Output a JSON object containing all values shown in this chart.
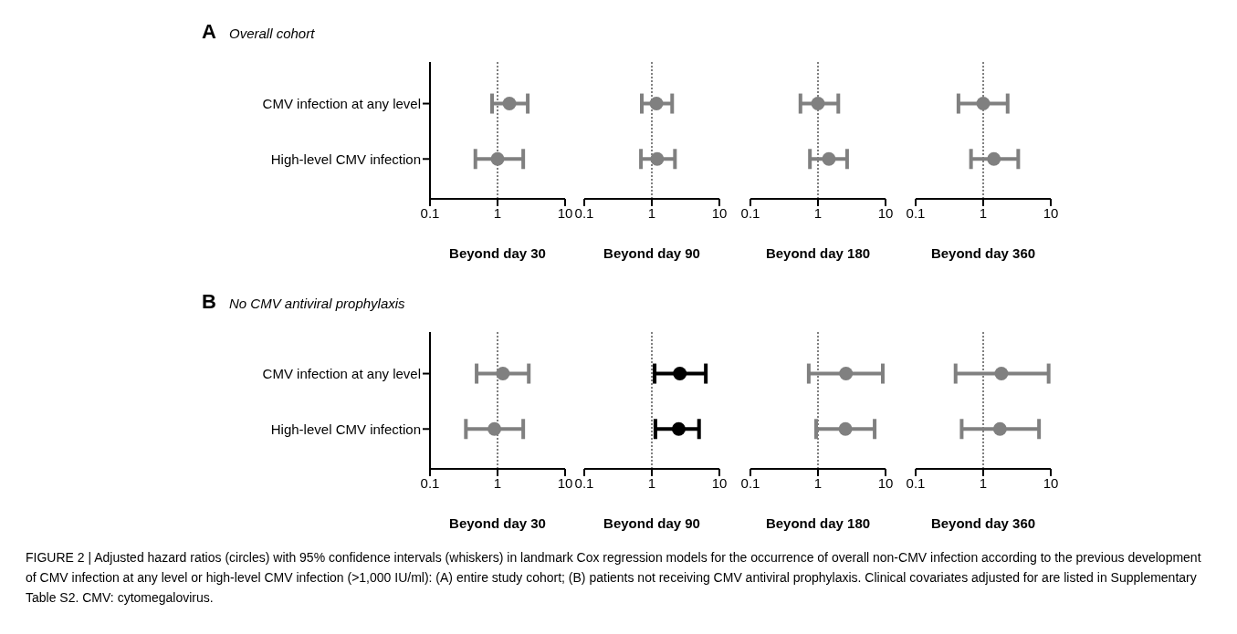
{
  "chart_data": [
    {
      "type": "scatter",
      "orientation": "horizontal",
      "title": "A",
      "subtitle": "Overall cohort",
      "categories": [
        "CMV infection at any level",
        "High-level CMV infection"
      ],
      "values": [
        1.5,
        1.0
      ],
      "errors": [
        [
          0.83,
          2.8
        ],
        [
          0.47,
          2.4
        ]
      ],
      "colors": [
        "#808080",
        "#808080"
      ],
      "xlim": [
        0.1,
        10
      ],
      "xticks": [
        0.1,
        1,
        10
      ],
      "log": "x",
      "xlabel": "Beyond day 30",
      "ref_lines": [
        {
          "axis": "x",
          "value": 1,
          "line_style": "dotted",
          "color": "#000000"
        }
      ],
      "marker": "circle"
    },
    {
      "type": "scatter",
      "orientation": "horizontal",
      "values": [
        1.17,
        1.2
      ],
      "errors": [
        [
          0.71,
          2.0
        ],
        [
          0.69,
          2.2
        ]
      ],
      "colors": [
        "#808080",
        "#808080"
      ],
      "xlim": [
        0.1,
        10
      ],
      "xticks": [
        0.1,
        1,
        10
      ],
      "log": "x",
      "xlabel": "Beyond day 90",
      "ref_lines": [
        {
          "axis": "x",
          "value": 1,
          "line_style": "dotted",
          "color": "#000000"
        }
      ],
      "marker": "circle",
      "tick_labels": "x"
    },
    {
      "type": "scatter",
      "orientation": "horizontal",
      "values": [
        1.0,
        1.45
      ],
      "errors": [
        [
          0.55,
          2.0
        ],
        [
          0.76,
          2.7
        ]
      ],
      "colors": [
        "#808080",
        "#808080"
      ],
      "xlim": [
        0.1,
        10
      ],
      "xticks": [
        0.1,
        1,
        10
      ],
      "log": "x",
      "xlabel": "Beyond day 180",
      "ref_lines": [
        {
          "axis": "x",
          "value": 1,
          "line_style": "dotted",
          "color": "#000000"
        }
      ],
      "marker": "circle",
      "tick_labels": "x"
    },
    {
      "type": "scatter",
      "orientation": "horizontal",
      "values": [
        1.0,
        1.44
      ],
      "errors": [
        [
          0.43,
          2.3
        ],
        [
          0.66,
          3.3
        ]
      ],
      "colors": [
        "#808080",
        "#808080"
      ],
      "xlim": [
        0.1,
        10
      ],
      "xticks": [
        0.1,
        1,
        10
      ],
      "log": "x",
      "xlabel": "Beyond day 360",
      "ref_lines": [
        {
          "axis": "x",
          "value": 1,
          "line_style": "dotted",
          "color": "#000000"
        }
      ],
      "marker": "circle",
      "tick_labels": "x"
    },
    {
      "type": "scatter",
      "orientation": "horizontal",
      "title": "B",
      "subtitle": "No CMV antiviral prophylaxis",
      "categories": [
        "CMV infection at any level",
        "High-level CMV infection"
      ],
      "values": [
        1.2,
        0.9
      ],
      "errors": [
        [
          0.49,
          2.9
        ],
        [
          0.34,
          2.4
        ]
      ],
      "colors": [
        "#808080",
        "#808080"
      ],
      "xlim": [
        0.1,
        10
      ],
      "xticks": [
        0.1,
        1,
        10
      ],
      "log": "x",
      "xlabel": "Beyond day 30",
      "ref_lines": [
        {
          "axis": "x",
          "value": 1,
          "line_style": "dotted",
          "color": "#000000"
        }
      ],
      "marker": "circle"
    },
    {
      "type": "scatter",
      "orientation": "horizontal",
      "values": [
        2.6,
        2.5
      ],
      "errors": [
        [
          1.1,
          6.3
        ],
        [
          1.13,
          5.0
        ]
      ],
      "colors": [
        "#000000",
        "#000000"
      ],
      "xlim": [
        0.1,
        10
      ],
      "xticks": [
        0.1,
        1,
        10
      ],
      "log": "x",
      "xlabel": "Beyond day 90",
      "ref_lines": [
        {
          "axis": "x",
          "value": 1,
          "line_style": "dotted",
          "color": "#000000"
        }
      ],
      "marker": "circle",
      "tick_labels": "x"
    },
    {
      "type": "scatter",
      "orientation": "horizontal",
      "values": [
        2.6,
        2.55
      ],
      "errors": [
        [
          0.73,
          9.1
        ],
        [
          0.94,
          6.9
        ]
      ],
      "colors": [
        "#808080",
        "#808080"
      ],
      "xlim": [
        0.1,
        10
      ],
      "xticks": [
        0.1,
        1,
        10
      ],
      "log": "x",
      "xlabel": "Beyond day 180",
      "ref_lines": [
        {
          "axis": "x",
          "value": 1,
          "line_style": "dotted",
          "color": "#000000"
        }
      ],
      "marker": "circle",
      "tick_labels": "x"
    },
    {
      "type": "scatter",
      "orientation": "horizontal",
      "values": [
        1.86,
        1.77
      ],
      "errors": [
        [
          0.39,
          9.3
        ],
        [
          0.48,
          6.7
        ]
      ],
      "colors": [
        "#808080",
        "#808080"
      ],
      "xlim": [
        0.1,
        10
      ],
      "xticks": [
        0.1,
        1,
        10
      ],
      "log": "x",
      "xlabel": "Beyond day 360",
      "ref_lines": [
        {
          "axis": "x",
          "value": 1,
          "line_style": "dotted",
          "color": "#000000"
        }
      ],
      "marker": "circle",
      "tick_labels": "x",
      "annotations": [
        "FIGURE 2 | Adjusted hazard ratios (circles) with 95% confidence intervals (whiskers) in landmark Cox regression models for the occurrence of overall non-CMV infection according to the previous development of CMV infection at any level or high-level CMV infection (>1,000 IU/ml): (A) entire study cohort; (B) patients not receiving CMV antiviral prophylaxis. Clinical covariates adjusted for are listed in Supplementary Table S2. CMV: cytomegalovirus."
      ]
    }
  ]
}
